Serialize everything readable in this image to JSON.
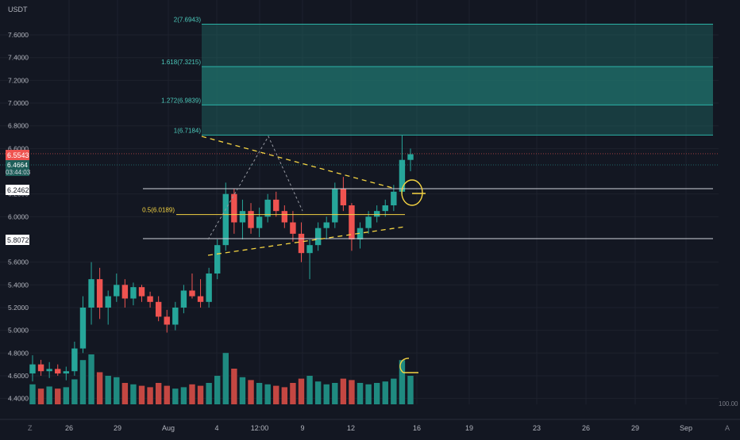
{
  "colors": {
    "background": "#131722",
    "grid": "#1e222d",
    "axis_text": "#b2b5be",
    "up": "#26a69a",
    "down": "#ef5350",
    "vol_up": "#1f8a80",
    "vol_down": "#c44742",
    "fib_zone": "#1f6b66",
    "fib_line": "#2bb3a7",
    "fib_text": "#4cc9bb",
    "level_line": "#d1d4dc",
    "mid_line": "#f5d442",
    "trendline": "#f5d442",
    "zigzag": "#9598a1"
  },
  "axes": {
    "currency": "USDT",
    "y_ticks": [
      "7.6000",
      "7.4000",
      "7.2000",
      "7.0000",
      "6.8000",
      "6.6000",
      "6.2000",
      "6.0000",
      "5.6000",
      "5.4000",
      "5.2000",
      "5.0000",
      "4.8000",
      "4.6000",
      "4.4000"
    ],
    "y_tick_values": [
      7.6,
      7.4,
      7.2,
      7.0,
      6.8,
      6.6,
      6.2,
      6.0,
      5.6,
      5.4,
      5.2,
      5.0,
      4.8,
      4.6,
      4.4
    ],
    "x_ticks": [
      "26",
      "29",
      "Aug",
      "4",
      "12:00",
      "9",
      "12",
      "16",
      "19",
      "23",
      "26",
      "29",
      "Sep"
    ],
    "volume_label": "100.00",
    "corner_left": "Z",
    "corner_right": "A"
  },
  "price_labels": {
    "last_price": "6.5543",
    "bid": "6.4664",
    "countdown": "03:44:03",
    "resistance": "6.2462",
    "support": "5.8072"
  },
  "fib_labels": {
    "f2": "2(7.6943)",
    "f1618": "1.618(7.3215)",
    "f1272": "1.272(6.9839)",
    "f1": "1(6.7184)",
    "f05": "0.5(6.0189)"
  },
  "chart_data": {
    "type": "candlestick",
    "symbol_currency": "USDT",
    "x_range": [
      "Jul 23",
      "Sep 3"
    ],
    "ylim": [
      4.4,
      7.75
    ],
    "grid": true,
    "legend": "none",
    "levels": {
      "resistance": 6.2462,
      "support": 5.8072,
      "fib_0_5": 6.0189,
      "fib_1": 6.7184,
      "fib_1_272": 6.9839,
      "fib_1_618": 7.3215,
      "fib_2": 7.6943,
      "last_price": 6.5543
    },
    "candles": [
      {
        "o": 4.62,
        "h": 4.78,
        "l": 4.55,
        "c": 4.7
      },
      {
        "o": 4.7,
        "h": 4.74,
        "l": 4.6,
        "c": 4.64
      },
      {
        "o": 4.64,
        "h": 4.72,
        "l": 4.58,
        "c": 4.66
      },
      {
        "o": 4.66,
        "h": 4.7,
        "l": 4.6,
        "c": 4.62
      },
      {
        "o": 4.62,
        "h": 4.68,
        "l": 4.56,
        "c": 4.64
      },
      {
        "o": 4.64,
        "h": 4.9,
        "l": 4.6,
        "c": 4.84
      },
      {
        "o": 4.84,
        "h": 5.3,
        "l": 4.8,
        "c": 5.2
      },
      {
        "o": 5.2,
        "h": 5.6,
        "l": 5.05,
        "c": 5.45
      },
      {
        "o": 5.45,
        "h": 5.55,
        "l": 5.1,
        "c": 5.2
      },
      {
        "o": 5.2,
        "h": 5.35,
        "l": 5.05,
        "c": 5.3
      },
      {
        "o": 5.3,
        "h": 5.5,
        "l": 5.25,
        "c": 5.4
      },
      {
        "o": 5.4,
        "h": 5.45,
        "l": 5.2,
        "c": 5.28
      },
      {
        "o": 5.28,
        "h": 5.42,
        "l": 5.22,
        "c": 5.38
      },
      {
        "o": 5.38,
        "h": 5.4,
        "l": 5.25,
        "c": 5.3
      },
      {
        "o": 5.3,
        "h": 5.34,
        "l": 5.2,
        "c": 5.25
      },
      {
        "o": 5.25,
        "h": 5.3,
        "l": 5.08,
        "c": 5.12
      },
      {
        "o": 5.12,
        "h": 5.18,
        "l": 4.98,
        "c": 5.05
      },
      {
        "o": 5.05,
        "h": 5.25,
        "l": 5.0,
        "c": 5.2
      },
      {
        "o": 5.2,
        "h": 5.4,
        "l": 5.15,
        "c": 5.35
      },
      {
        "o": 5.35,
        "h": 5.5,
        "l": 5.28,
        "c": 5.3
      },
      {
        "o": 5.3,
        "h": 5.45,
        "l": 5.2,
        "c": 5.25
      },
      {
        "o": 5.25,
        "h": 5.55,
        "l": 5.2,
        "c": 5.5
      },
      {
        "o": 5.5,
        "h": 5.8,
        "l": 5.45,
        "c": 5.75
      },
      {
        "o": 5.75,
        "h": 6.3,
        "l": 5.7,
        "c": 6.2
      },
      {
        "o": 6.2,
        "h": 6.25,
        "l": 5.85,
        "c": 5.95
      },
      {
        "o": 5.95,
        "h": 6.15,
        "l": 5.8,
        "c": 6.05
      },
      {
        "o": 6.05,
        "h": 6.12,
        "l": 5.85,
        "c": 5.9
      },
      {
        "o": 5.9,
        "h": 6.08,
        "l": 5.82,
        "c": 6.0
      },
      {
        "o": 6.0,
        "h": 6.2,
        "l": 5.95,
        "c": 6.15
      },
      {
        "o": 6.15,
        "h": 6.22,
        "l": 6.0,
        "c": 6.05
      },
      {
        "o": 6.05,
        "h": 6.1,
        "l": 5.9,
        "c": 5.95
      },
      {
        "o": 5.95,
        "h": 6.05,
        "l": 5.78,
        "c": 5.85
      },
      {
        "o": 5.85,
        "h": 5.95,
        "l": 5.6,
        "c": 5.68
      },
      {
        "o": 5.68,
        "h": 5.8,
        "l": 5.45,
        "c": 5.75
      },
      {
        "o": 5.75,
        "h": 5.95,
        "l": 5.7,
        "c": 5.9
      },
      {
        "o": 5.9,
        "h": 6.0,
        "l": 5.8,
        "c": 5.95
      },
      {
        "o": 5.95,
        "h": 6.3,
        "l": 5.9,
        "c": 6.25
      },
      {
        "o": 6.25,
        "h": 6.35,
        "l": 6.05,
        "c": 6.1
      },
      {
        "o": 6.1,
        "h": 6.12,
        "l": 5.7,
        "c": 5.8
      },
      {
        "o": 5.8,
        "h": 5.95,
        "l": 5.72,
        "c": 5.9
      },
      {
        "o": 5.9,
        "h": 6.05,
        "l": 5.85,
        "c": 6.0
      },
      {
        "o": 6.0,
        "h": 6.1,
        "l": 5.95,
        "c": 6.05
      },
      {
        "o": 6.05,
        "h": 6.15,
        "l": 6.0,
        "c": 6.1
      },
      {
        "o": 6.1,
        "h": 6.28,
        "l": 6.05,
        "c": 6.22
      },
      {
        "o": 6.22,
        "h": 6.72,
        "l": 6.2,
        "c": 6.5
      },
      {
        "o": 6.5,
        "h": 6.6,
        "l": 6.4,
        "c": 6.55
      }
    ],
    "volumes": [
      0.28,
      0.22,
      0.25,
      0.22,
      0.24,
      0.35,
      0.62,
      0.7,
      0.45,
      0.4,
      0.38,
      0.3,
      0.28,
      0.26,
      0.24,
      0.3,
      0.26,
      0.22,
      0.24,
      0.28,
      0.26,
      0.3,
      0.4,
      0.72,
      0.5,
      0.38,
      0.34,
      0.3,
      0.28,
      0.26,
      0.24,
      0.3,
      0.36,
      0.4,
      0.32,
      0.28,
      0.3,
      0.36,
      0.34,
      0.3,
      0.28,
      0.3,
      0.32,
      0.36,
      0.62,
      0.4
    ]
  }
}
